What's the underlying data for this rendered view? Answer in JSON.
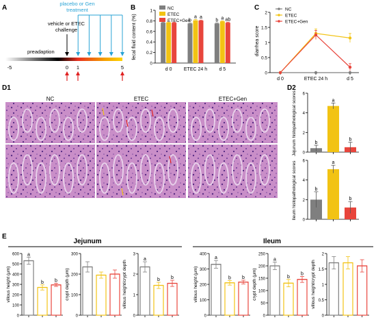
{
  "colors": {
    "NC": "#7f7f7f",
    "ETEC": "#f2c314",
    "ETEC+Gen": "#e8453c",
    "placebo": "#29a3d6",
    "arrow_red": "#e02020"
  },
  "panelA": {
    "letter": "A",
    "placebo_label_1": "placebo or Gen",
    "placebo_label_2": "treatment",
    "challenge_label_1": "vehicle or ETEC",
    "challenge_label_2": "challenge",
    "preadaption_label": "preadaption",
    "ticks": [
      "-5",
      "0",
      "1",
      "5"
    ],
    "placebo_days": [
      1,
      2,
      3,
      4,
      5
    ],
    "red_arrow_days": [
      0,
      1,
      5
    ]
  },
  "chart_data": [
    {
      "panel": "B",
      "type": "bar",
      "title": "",
      "ylabel": "fecal fluid content (%)",
      "categories": [
        "d 0",
        "ETEC 24 h",
        "d 5"
      ],
      "ylim": [
        0,
        1.0
      ],
      "yticks": [
        0,
        0.2,
        0.4,
        0.6,
        0.8,
        1.0
      ],
      "series": [
        {
          "name": "NC",
          "values": [
            0.765,
            0.75,
            0.75
          ],
          "err": [
            0.01,
            0.01,
            0.01
          ]
        },
        {
          "name": "ETEC",
          "values": [
            0.77,
            0.81,
            0.79
          ],
          "err": [
            0.01,
            0.015,
            0.01
          ]
        },
        {
          "name": "ETEC+Gen",
          "values": [
            0.765,
            0.805,
            0.765
          ],
          "err": [
            0.01,
            0.01,
            0.01
          ]
        }
      ],
      "labels": [
        [
          "",
          "",
          ""
        ],
        [
          "b",
          "a",
          "a"
        ],
        [
          "b",
          "a",
          "ab"
        ]
      ]
    },
    {
      "panel": "C",
      "type": "line",
      "title": "",
      "ylabel": "diarrhea score",
      "categories": [
        "d 0",
        "ETEC 24 h",
        "d 5"
      ],
      "ylim": [
        0,
        2.0
      ],
      "yticks": [
        0,
        0.5,
        1.0,
        1.5,
        2.0
      ],
      "series": [
        {
          "name": "NC",
          "values": [
            0,
            0,
            0
          ],
          "err": [
            0,
            0,
            0
          ]
        },
        {
          "name": "ETEC",
          "values": [
            0,
            1.3,
            1.15
          ],
          "err": [
            0,
            0.15,
            0.15
          ]
        },
        {
          "name": "ETEC+Gen",
          "values": [
            0,
            1.25,
            0.18
          ],
          "err": [
            0,
            0.15,
            0.12
          ]
        }
      ]
    },
    {
      "panel": "D2-Jejunum",
      "type": "bar",
      "title": "",
      "ylabel": "Jejunum histopathological scores",
      "categories": [
        "NC",
        "ETEC",
        "ETEC+Gen"
      ],
      "ylim": [
        0,
        6
      ],
      "yticks": [
        0,
        2,
        4,
        6
      ],
      "values": [
        0.4,
        4.7,
        0.5
      ],
      "err": [
        0.3,
        0.3,
        0.5
      ],
      "labels": [
        "b",
        "a",
        "b"
      ]
    },
    {
      "panel": "D2-Ileum",
      "type": "bar",
      "title": "",
      "ylabel": "Ileum histopathological scores",
      "categories": [
        "NC",
        "ETEC",
        "ETEC+Gen"
      ],
      "ylim": [
        0,
        6
      ],
      "yticks": [
        0,
        2,
        4,
        6
      ],
      "values": [
        2.0,
        5.1,
        1.2
      ],
      "err": [
        0.8,
        0.4,
        0.6
      ],
      "labels": [
        "b",
        "a",
        "b"
      ]
    },
    {
      "panel": "E-Jejunum-1",
      "type": "bar",
      "title": "",
      "group": "Jejunum",
      "ylabel": "villous height (μm)",
      "ylim": [
        0,
        600
      ],
      "yticks": [
        0,
        100,
        200,
        300,
        400,
        500,
        600
      ],
      "categories": [
        "NC",
        "ETEC",
        "ETEC+Gen"
      ],
      "values": [
        530,
        270,
        295
      ],
      "err": [
        35,
        25,
        15
      ],
      "labels": [
        "a",
        "b",
        "b"
      ]
    },
    {
      "panel": "E-Jejunum-2",
      "type": "bar",
      "title": "",
      "group": "Jejunum",
      "ylabel": "crypt depth (μm)",
      "ylim": [
        0,
        300
      ],
      "yticks": [
        0,
        100,
        200,
        300
      ],
      "categories": [
        "NC",
        "ETEC",
        "ETEC+Gen"
      ],
      "values": [
        235,
        195,
        200
      ],
      "err": [
        25,
        15,
        20
      ],
      "labels": [
        "",
        "",
        ""
      ]
    },
    {
      "panel": "E-Jejunum-3",
      "type": "bar",
      "title": "",
      "group": "Jejunum",
      "ylabel": "villous height/crypt depth",
      "ylim": [
        0,
        3
      ],
      "yticks": [
        0,
        1,
        2,
        3
      ],
      "categories": [
        "NC",
        "ETEC",
        "ETEC+Gen"
      ],
      "values": [
        2.35,
        1.45,
        1.55
      ],
      "err": [
        0.25,
        0.15,
        0.15
      ],
      "labels": [
        "a",
        "b",
        "b"
      ]
    },
    {
      "panel": "E-Ileum-1",
      "type": "bar",
      "title": "",
      "group": "Ileum",
      "ylabel": "villous height (μm)",
      "ylim": [
        0,
        400
      ],
      "yticks": [
        0,
        100,
        200,
        300,
        400
      ],
      "categories": [
        "NC",
        "ETEC",
        "ETEC+Gen"
      ],
      "values": [
        330,
        210,
        215
      ],
      "err": [
        25,
        15,
        12
      ],
      "labels": [
        "a",
        "b",
        "b"
      ]
    },
    {
      "panel": "E-Ileum-2",
      "type": "bar",
      "title": "",
      "group": "Ileum",
      "ylabel": "crypt depth (μm)",
      "ylim": [
        0,
        250
      ],
      "yticks": [
        0,
        50,
        100,
        150,
        200,
        250
      ],
      "categories": [
        "NC",
        "ETEC",
        "ETEC+Gen"
      ],
      "values": [
        200,
        130,
        145
      ],
      "err": [
        15,
        15,
        12
      ],
      "labels": [
        "a",
        "b",
        "b"
      ]
    },
    {
      "panel": "E-Ileum-3",
      "type": "bar",
      "title": "",
      "group": "Ileum",
      "ylabel": "villous height/crypt depth",
      "ylim": [
        0,
        2.0
      ],
      "yticks": [
        0,
        0.5,
        1.0,
        1.5,
        2.0
      ],
      "categories": [
        "NC",
        "ETEC",
        "ETEC+Gen"
      ],
      "values": [
        1.7,
        1.7,
        1.6
      ],
      "err": [
        0.2,
        0.2,
        0.2
      ],
      "labels": [
        "",
        "",
        ""
      ]
    }
  ],
  "legend": [
    "NC",
    "ETEC",
    "ETEC+Gen"
  ],
  "panelD1": {
    "letter": "D1",
    "headers": [
      "NC",
      "ETEC",
      "ETEC+Gen"
    ]
  },
  "panelD2": {
    "letter": "D2"
  },
  "panelE": {
    "letter": "E",
    "groups": [
      "Jejunum",
      "Ileum"
    ]
  },
  "panel_letters": {
    "B": "B",
    "C": "C"
  }
}
